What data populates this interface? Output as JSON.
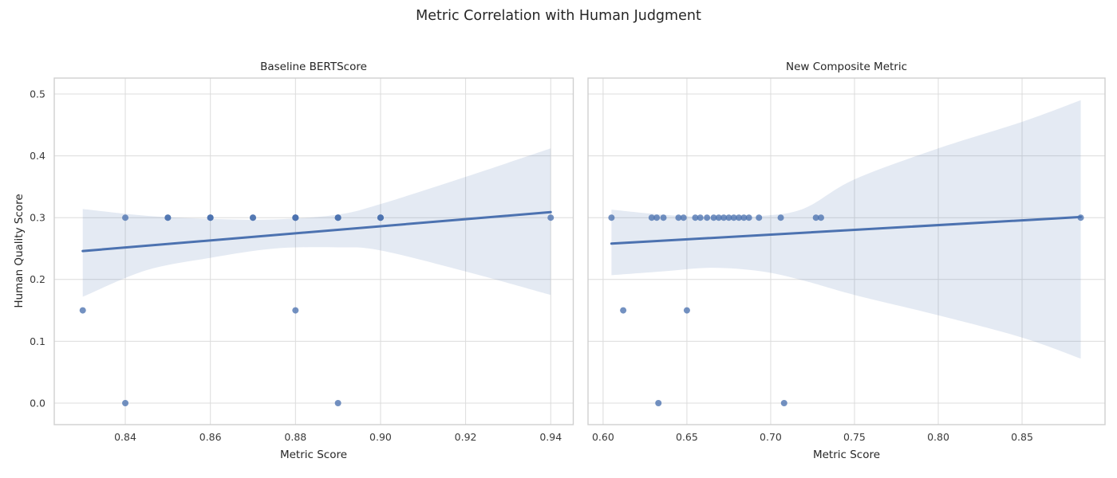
{
  "figure": {
    "title": "Metric Correlation with Human Judgment",
    "shared_ylabel": "Human Quality Score"
  },
  "colors": {
    "accent": "#4c72b0",
    "band_fill": "rgba(76,114,176,0.15)",
    "grid": "#dcdcdc",
    "spine": "#cfcfcf",
    "tick_text": "#3a3a3a",
    "title_text": "#262626",
    "background": "#ffffff"
  },
  "chart_data": [
    {
      "type": "scatter",
      "title": "Baseline BERTScore",
      "xlabel": "Metric Score",
      "ylabel": "Human Quality Score",
      "grid": true,
      "legend": "none",
      "xlim": [
        0.8233,
        0.9453
      ],
      "ylim": [
        -0.0348,
        0.5258
      ],
      "xticks": [
        0.84,
        0.86,
        0.88,
        0.9,
        0.92,
        0.94
      ],
      "xtick_labels": [
        "0.84",
        "0.86",
        "0.88",
        "0.90",
        "0.92",
        "0.94"
      ],
      "yticks": [
        0.0,
        0.1,
        0.2,
        0.3,
        0.4,
        0.5
      ],
      "ytick_labels": [
        "0.0",
        "0.1",
        "0.2",
        "0.3",
        "0.4",
        "0.5"
      ],
      "show_ytick_labels": true,
      "points": [
        [
          0.83,
          0.15
        ],
        [
          0.84,
          0.0
        ],
        [
          0.84,
          0.3
        ],
        [
          0.85,
          0.3
        ],
        [
          0.85,
          0.3
        ],
        [
          0.86,
          0.3
        ],
        [
          0.86,
          0.3
        ],
        [
          0.86,
          0.3
        ],
        [
          0.87,
          0.3
        ],
        [
          0.87,
          0.3
        ],
        [
          0.88,
          0.15
        ],
        [
          0.88,
          0.3
        ],
        [
          0.88,
          0.3
        ],
        [
          0.88,
          0.3
        ],
        [
          0.88,
          0.3
        ],
        [
          0.89,
          0.0
        ],
        [
          0.89,
          0.3
        ],
        [
          0.89,
          0.3
        ],
        [
          0.89,
          0.3
        ],
        [
          0.9,
          0.3
        ],
        [
          0.9,
          0.3
        ],
        [
          0.9,
          0.3
        ],
        [
          0.94,
          0.3
        ]
      ],
      "regression_line": {
        "x": [
          0.83,
          0.94
        ],
        "y": [
          0.246,
          0.309
        ]
      },
      "ci_band": {
        "top": [
          [
            0.83,
            0.314
          ],
          [
            0.845,
            0.303
          ],
          [
            0.86,
            0.298
          ],
          [
            0.875,
            0.297
          ],
          [
            0.89,
            0.305
          ],
          [
            0.9,
            0.322
          ],
          [
            0.92,
            0.366
          ],
          [
            0.94,
            0.412
          ]
        ],
        "bottom": [
          [
            0.83,
            0.172
          ],
          [
            0.845,
            0.215
          ],
          [
            0.86,
            0.235
          ],
          [
            0.875,
            0.25
          ],
          [
            0.89,
            0.252
          ],
          [
            0.9,
            0.247
          ],
          [
            0.92,
            0.213
          ],
          [
            0.94,
            0.175
          ]
        ]
      }
    },
    {
      "type": "scatter",
      "title": "New Composite Metric",
      "xlabel": "Metric Score",
      "ylabel": "Human Quality Score",
      "grid": true,
      "legend": "none",
      "xlim": [
        0.591,
        0.8995
      ],
      "ylim": [
        -0.0348,
        0.5258
      ],
      "xticks": [
        0.6,
        0.65,
        0.7,
        0.75,
        0.8,
        0.85
      ],
      "xtick_labels": [
        "0.60",
        "0.65",
        "0.70",
        "0.75",
        "0.80",
        "0.85"
      ],
      "yticks": [
        0.0,
        0.1,
        0.2,
        0.3,
        0.4,
        0.5
      ],
      "ytick_labels": [
        "0.0",
        "0.1",
        "0.2",
        "0.3",
        "0.4",
        "0.5"
      ],
      "show_ytick_labels": false,
      "points": [
        [
          0.605,
          0.3
        ],
        [
          0.629,
          0.3
        ],
        [
          0.632,
          0.3
        ],
        [
          0.636,
          0.3
        ],
        [
          0.645,
          0.3
        ],
        [
          0.648,
          0.3
        ],
        [
          0.655,
          0.3
        ],
        [
          0.658,
          0.3
        ],
        [
          0.662,
          0.3
        ],
        [
          0.666,
          0.3
        ],
        [
          0.669,
          0.3
        ],
        [
          0.672,
          0.3
        ],
        [
          0.675,
          0.3
        ],
        [
          0.678,
          0.3
        ],
        [
          0.681,
          0.3
        ],
        [
          0.684,
          0.3
        ],
        [
          0.687,
          0.3
        ],
        [
          0.693,
          0.3
        ],
        [
          0.706,
          0.3
        ],
        [
          0.727,
          0.3
        ],
        [
          0.73,
          0.3
        ],
        [
          0.885,
          0.3
        ],
        [
          0.612,
          0.15
        ],
        [
          0.65,
          0.15
        ],
        [
          0.633,
          0.0
        ],
        [
          0.708,
          0.0
        ]
      ],
      "regression_line": {
        "x": [
          0.605,
          0.885
        ],
        "y": [
          0.258,
          0.301
        ]
      },
      "ci_band": {
        "top": [
          [
            0.605,
            0.313
          ],
          [
            0.635,
            0.305
          ],
          [
            0.665,
            0.301
          ],
          [
            0.695,
            0.303
          ],
          [
            0.72,
            0.315
          ],
          [
            0.75,
            0.362
          ],
          [
            0.8,
            0.412
          ],
          [
            0.85,
            0.455
          ],
          [
            0.885,
            0.49
          ]
        ],
        "bottom": [
          [
            0.605,
            0.207
          ],
          [
            0.635,
            0.213
          ],
          [
            0.665,
            0.219
          ],
          [
            0.695,
            0.213
          ],
          [
            0.72,
            0.198
          ],
          [
            0.75,
            0.175
          ],
          [
            0.8,
            0.142
          ],
          [
            0.85,
            0.106
          ],
          [
            0.885,
            0.072
          ]
        ]
      }
    }
  ]
}
